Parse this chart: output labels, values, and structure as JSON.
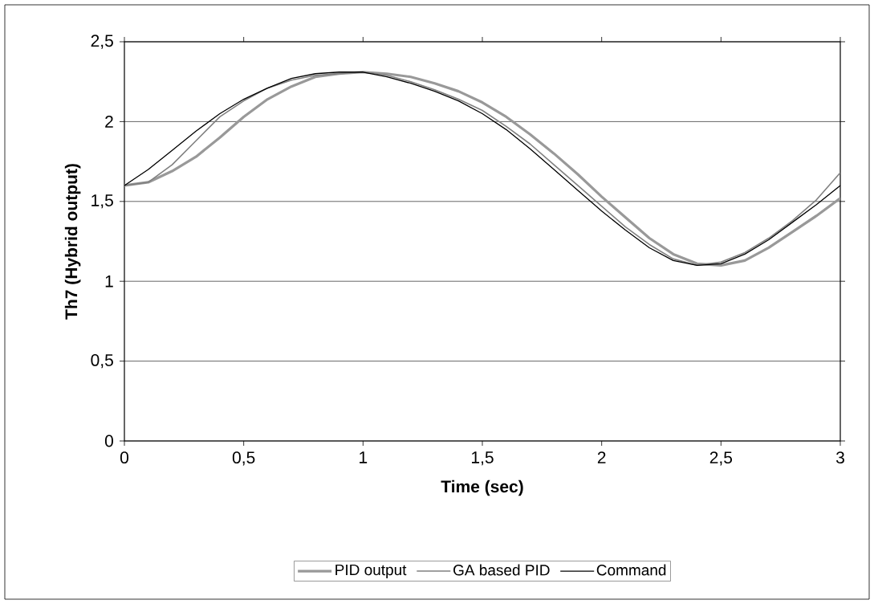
{
  "chart_data": {
    "type": "line",
    "xlabel": "Time (sec)",
    "ylabel": "Th7 (Hybrid output)",
    "xlim": [
      0,
      3
    ],
    "ylim": [
      0,
      2.5
    ],
    "xticks": [
      0,
      {
        "value": 0.5,
        "label": "0,5"
      },
      1,
      {
        "value": 1.5,
        "label": "1,5"
      },
      2,
      {
        "value": 2.5,
        "label": "2,5"
      },
      3
    ],
    "yticks": [
      0,
      {
        "value": 0.5,
        "label": "0,5"
      },
      1,
      {
        "value": 1.5,
        "label": "1,5"
      },
      2,
      {
        "value": 2.5,
        "label": "2,5"
      }
    ],
    "grid": "y",
    "legend": "bottom",
    "x": [
      0,
      0.1,
      0.2,
      0.3,
      0.4,
      0.5,
      0.6,
      0.7,
      0.8,
      0.9,
      1.0,
      1.1,
      1.2,
      1.3,
      1.4,
      1.5,
      1.6,
      1.7,
      1.8,
      1.9,
      2.0,
      2.1,
      2.2,
      2.3,
      2.4,
      2.5,
      2.6,
      2.7,
      2.8,
      2.9,
      3.0
    ],
    "series": [
      {
        "name": "PID output",
        "color": "#999999",
        "values": [
          1.6,
          1.62,
          1.69,
          1.78,
          1.9,
          2.03,
          2.14,
          2.22,
          2.28,
          2.3,
          2.31,
          2.3,
          2.28,
          2.24,
          2.19,
          2.12,
          2.03,
          1.92,
          1.8,
          1.67,
          1.53,
          1.4,
          1.27,
          1.17,
          1.11,
          1.1,
          1.13,
          1.21,
          1.31,
          1.41,
          1.52
        ]
      },
      {
        "name": "GA based PID",
        "color": "#808080",
        "values": [
          1.6,
          1.62,
          1.73,
          1.88,
          2.03,
          2.13,
          2.21,
          2.26,
          2.29,
          2.3,
          2.31,
          2.29,
          2.25,
          2.2,
          2.14,
          2.07,
          1.97,
          1.86,
          1.73,
          1.6,
          1.47,
          1.34,
          1.23,
          1.14,
          1.1,
          1.12,
          1.18,
          1.27,
          1.38,
          1.51,
          1.68
        ]
      },
      {
        "name": "Command",
        "color": "#000000",
        "values": [
          1.6,
          1.7,
          1.82,
          1.94,
          2.05,
          2.14,
          2.21,
          2.27,
          2.3,
          2.31,
          2.31,
          2.28,
          2.24,
          2.19,
          2.13,
          2.05,
          1.95,
          1.83,
          1.7,
          1.57,
          1.44,
          1.32,
          1.21,
          1.13,
          1.1,
          1.11,
          1.17,
          1.26,
          1.37,
          1.48,
          1.6
        ]
      }
    ]
  }
}
